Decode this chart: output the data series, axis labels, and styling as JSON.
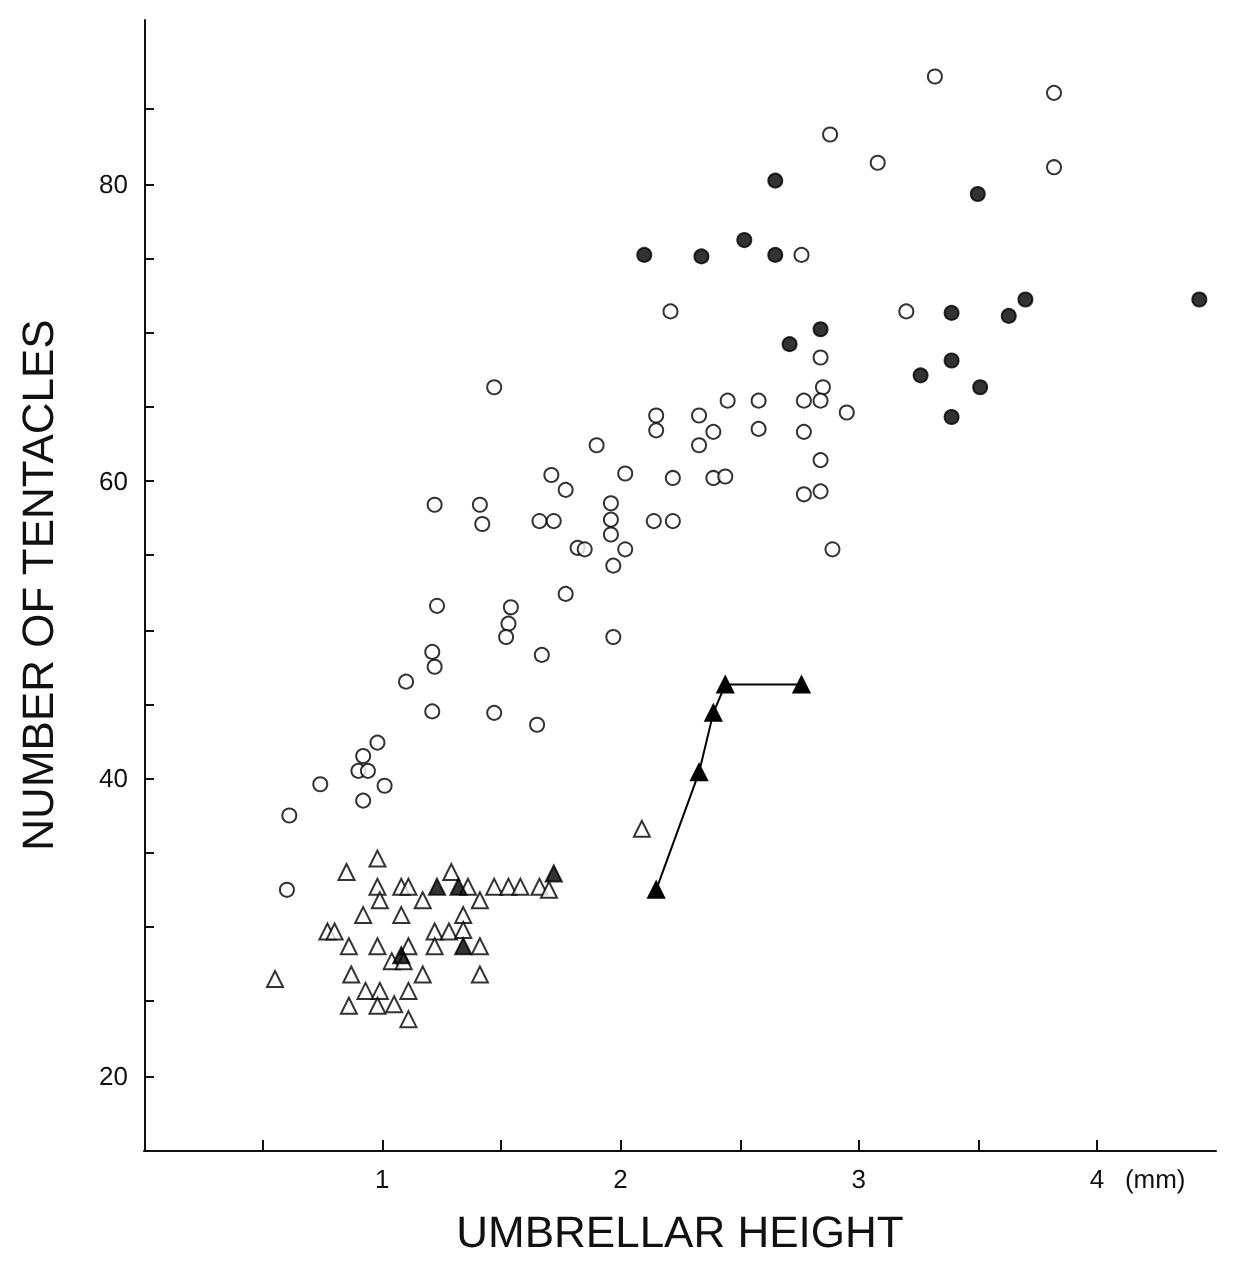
{
  "chart_data": {
    "type": "scatter",
    "xlabel": "UMBRELLAR HEIGHT",
    "ylabel": "NUMBER OF TENTACLES",
    "annotations": [
      "(mm)"
    ],
    "xlim": [
      0,
      4.5
    ],
    "xticks": [
      {
        "value": 0.5,
        "label": null
      },
      1,
      {
        "value": 1.5,
        "label": null
      },
      2,
      {
        "value": 2.5,
        "label": null
      },
      3,
      {
        "value": 3.5,
        "label": null
      },
      4
    ],
    "ylim": [
      15,
      91
    ],
    "yticks": [
      20,
      {
        "value": 25,
        "label": null
      },
      {
        "value": 30,
        "label": null
      },
      {
        "value": 35,
        "label": null
      },
      40,
      {
        "value": 45,
        "label": null
      },
      {
        "value": 50,
        "label": null
      },
      {
        "value": 55,
        "label": null
      },
      60,
      {
        "value": 65,
        "label": null
      },
      {
        "value": 70,
        "label": null
      },
      {
        "value": 75,
        "label": null
      },
      80,
      {
        "value": 85,
        "label": null
      }
    ],
    "grid": false,
    "series": [
      {
        "color": "#ffffff",
        "marker": "circle",
        "x": [
          1.21,
          1.67,
          1.22,
          1.1,
          1.21,
          1.47,
          1.65,
          0.98,
          0.92,
          0.9,
          0.94,
          0.74,
          1.01,
          0.92,
          0.61,
          0.6,
          2.21,
          1.47,
          2.15,
          2.15,
          1.9,
          1.71,
          1.77,
          2.02,
          2.22,
          1.22,
          1.41,
          1.42,
          1.66,
          1.72,
          1.96,
          1.96,
          1.96,
          2.02,
          1.82,
          1.85,
          1.97,
          2.14,
          2.22,
          1.77,
          1.23,
          1.54,
          1.53,
          1.52,
          1.97,
          3.32,
          3.82,
          2.88,
          3.08,
          3.82,
          2.76,
          3.2,
          2.84,
          2.85,
          2.45,
          2.58,
          2.77,
          2.84,
          2.95,
          2.33,
          2.39,
          2.33,
          2.58,
          2.77,
          2.84,
          2.39,
          2.44,
          2.77,
          2.84,
          2.89
        ],
        "values": [
          48.5,
          48.3,
          47.5,
          46.5,
          44.5,
          44.4,
          43.6,
          42.4,
          41.5,
          40.5,
          40.5,
          39.6,
          39.5,
          38.5,
          37.5,
          32.5,
          71.4,
          66.3,
          64.4,
          63.4,
          62.4,
          60.4,
          59.4,
          60.5,
          60.2,
          58.4,
          58.4,
          57.1,
          57.3,
          57.3,
          58.5,
          57.4,
          56.4,
          55.4,
          55.5,
          55.4,
          54.3,
          57.3,
          57.3,
          52.4,
          51.6,
          51.5,
          50.4,
          49.5,
          49.5,
          87.2,
          86.1,
          83.3,
          81.4,
          81.1,
          75.2,
          71.4,
          68.3,
          66.3,
          65.4,
          65.4,
          65.4,
          65.4,
          64.6,
          64.4,
          63.3,
          62.4,
          63.5,
          63.3,
          61.4,
          60.2,
          60.3,
          59.1,
          59.3,
          55.4
        ]
      },
      {
        "color": "#000000",
        "marker": "circle",
        "x": [
          2.1,
          2.34,
          2.52,
          2.65,
          2.65,
          3.5,
          2.84,
          2.71,
          3.39,
          3.63,
          3.7,
          4.43,
          3.39,
          3.26,
          3.51,
          3.39
        ],
        "values": [
          75.2,
          75.1,
          76.2,
          75.2,
          80.2,
          79.3,
          70.2,
          69.2,
          71.3,
          71.1,
          72.2,
          72.2,
          68.1,
          67.1,
          66.3,
          64.3
        ]
      },
      {
        "color": "#ffffff",
        "marker": "triangle",
        "x": [
          0.55,
          0.85,
          0.98,
          0.98,
          1.08,
          1.11,
          0.99,
          1.17,
          0.92,
          1.08,
          0.77,
          0.8,
          0.86,
          0.98,
          1.08,
          1.11,
          1.22,
          1.28,
          1.34,
          1.41,
          1.34,
          1.29,
          1.36,
          1.22,
          1.41,
          0.87,
          1.17,
          1.41,
          0.93,
          0.99,
          1.11,
          0.86,
          0.98,
          1.05,
          1.11,
          1.47,
          1.53,
          1.58,
          1.66,
          1.7,
          2.09,
          1.04,
          1.09
        ],
        "values": [
          26.5,
          33.7,
          34.6,
          32.7,
          32.7,
          32.7,
          31.8,
          31.8,
          30.8,
          30.8,
          29.7,
          29.7,
          28.7,
          28.7,
          null,
          28.7,
          29.7,
          29.7,
          30.8,
          31.8,
          29.8,
          33.7,
          32.7,
          28.7,
          28.7,
          26.8,
          26.8,
          26.8,
          25.7,
          25.7,
          25.7,
          24.7,
          24.7,
          24.8,
          23.8,
          32.7,
          32.7,
          32.7,
          32.7,
          32.5,
          36.6,
          27.7,
          27.7
        ]
      },
      {
        "color": "#000000",
        "marker": "triangle",
        "x": [
          1.23,
          1.32,
          1.72,
          1.34,
          1.08
        ],
        "values": [
          32.7,
          32.7,
          33.6,
          28.7,
          28.1
        ]
      },
      {
        "type": "line",
        "color": "#000000",
        "marker": "triangle",
        "line_style": "solid",
        "x": [
          2.15,
          2.33,
          2.39,
          2.44,
          2.76
        ],
        "values": [
          32.5,
          40.4,
          44.4,
          46.3,
          46.3
        ]
      }
    ]
  }
}
